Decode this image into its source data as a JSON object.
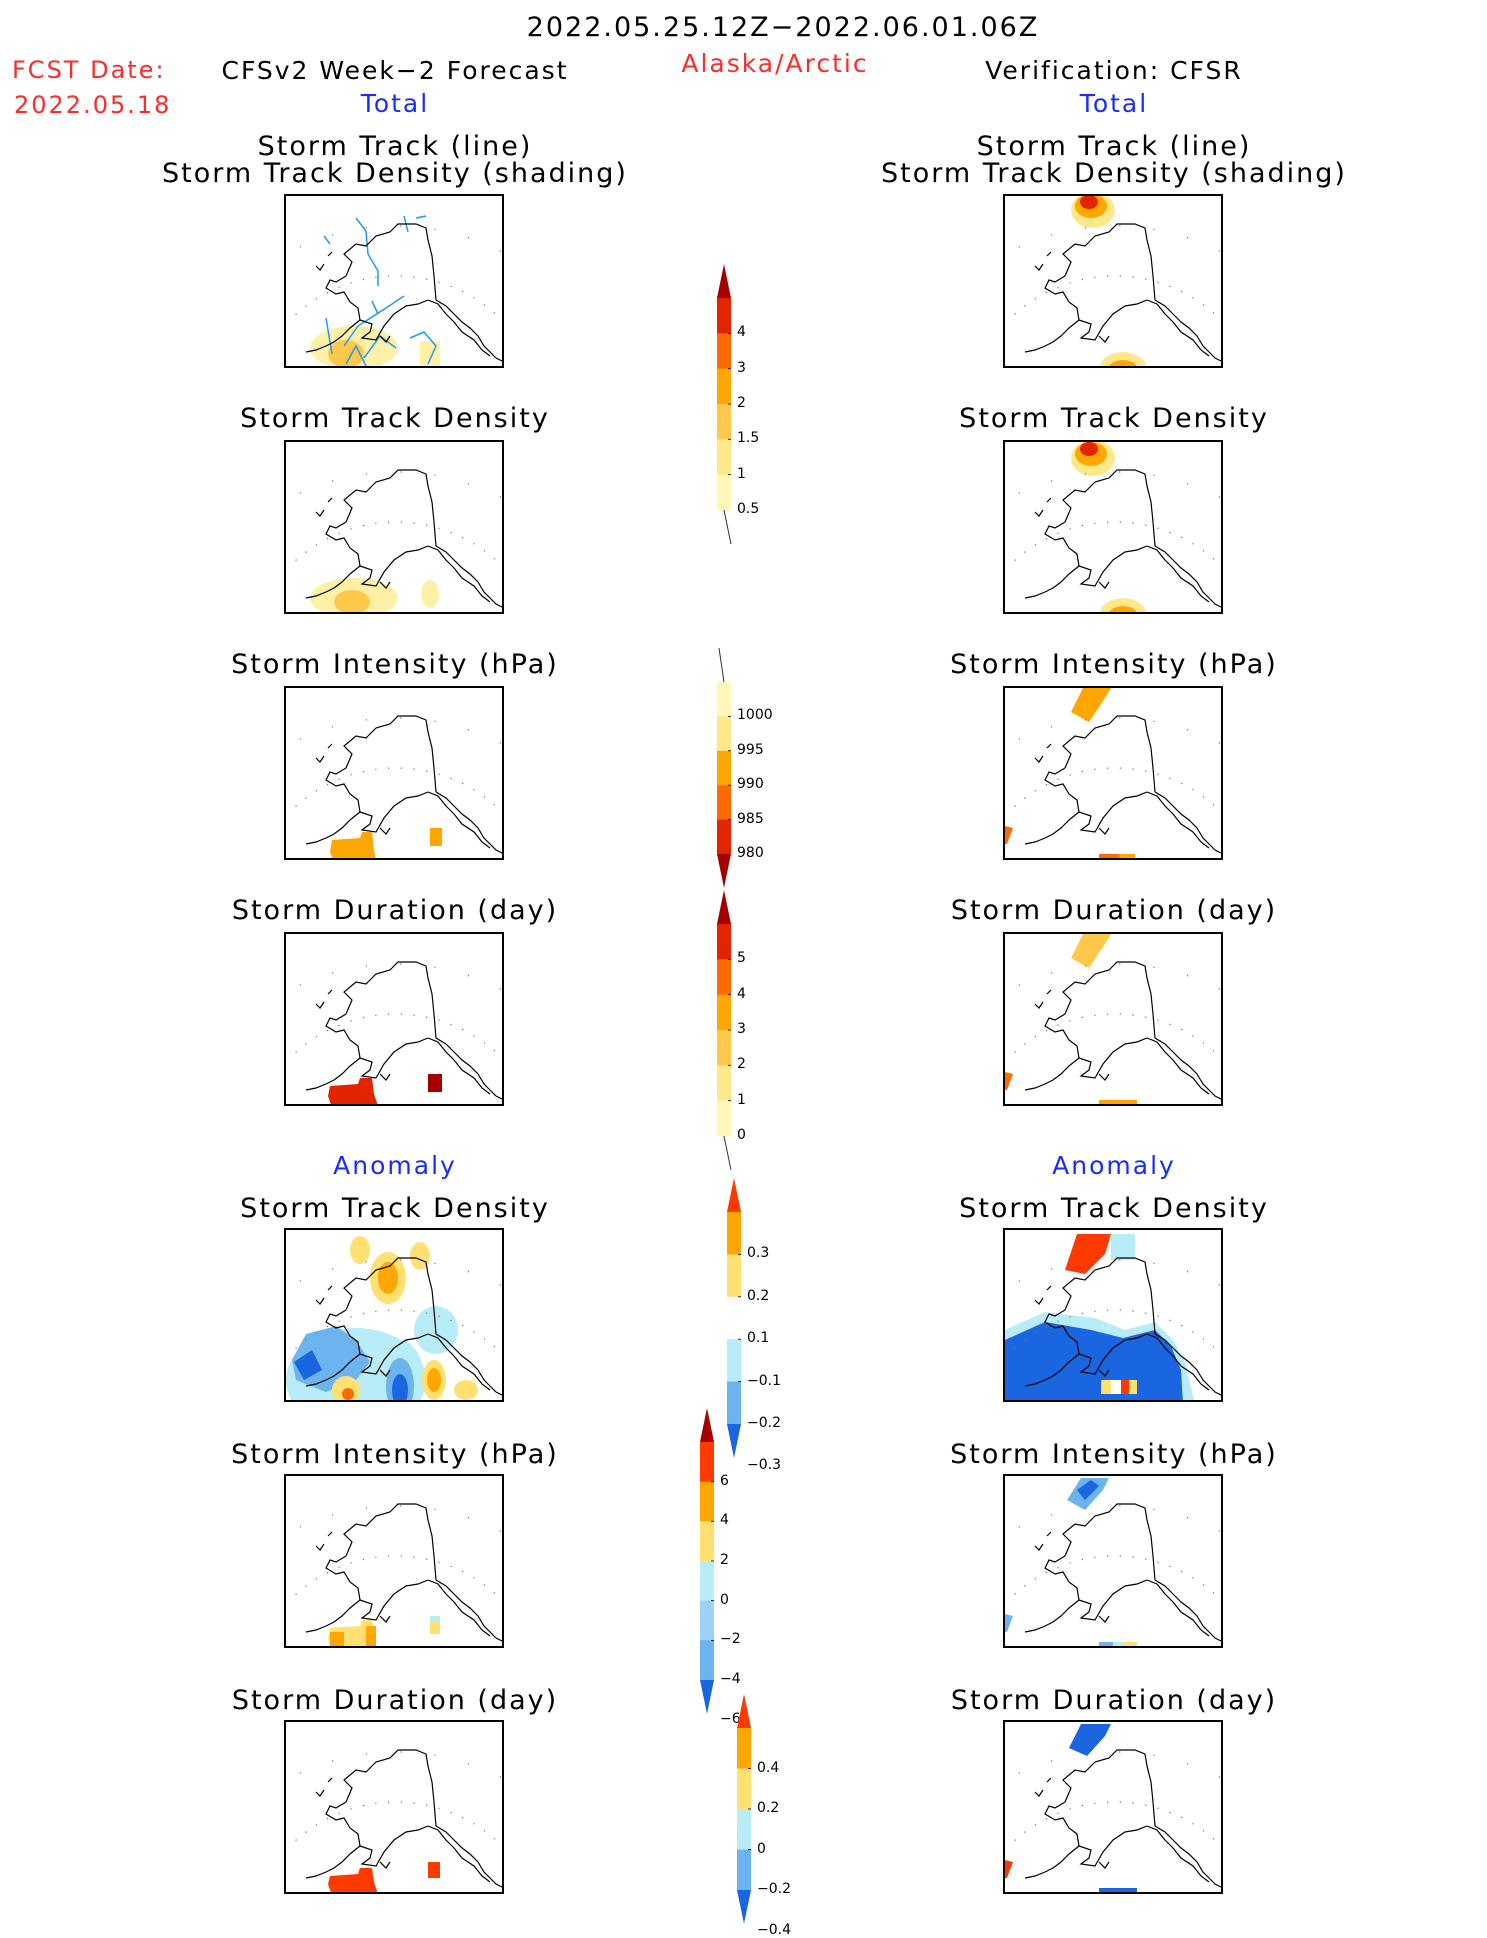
{
  "header": {
    "date_range": "2022.05.25.12Z−2022.06.01.06Z",
    "fcst_label": "FCST Date:",
    "fcst_date": "2022.05.18",
    "left_title": "CFSv2 Week−2 Forecast",
    "region": "Alaska/Arctic",
    "right_title": "Verification: CFSR",
    "left_total": "Total",
    "right_total": "Total",
    "left_anomaly": "Anomaly",
    "right_anomaly": "Anomaly"
  },
  "panel_titles": {
    "track_line": "Storm Track (line)",
    "track_shading": "Storm Track Density (shading)",
    "density": "Storm Track Density",
    "intensity": "Storm Intensity (hPa)",
    "duration": "Storm Duration (day)"
  },
  "colorbars": {
    "density_total": {
      "ticks": [
        "4",
        "3",
        "2",
        "1.5",
        "1",
        "0.5"
      ],
      "colors": [
        "#a50000",
        "#e32400",
        "#ff6a00",
        "#ffa600",
        "#ffc84a",
        "#ffe88a",
        "#fff7b8"
      ]
    },
    "intensity_total": {
      "ticks": [
        "1000",
        "995",
        "990",
        "985",
        "980"
      ],
      "colors": [
        "#fff7b8",
        "#ffe88a",
        "#ffa600",
        "#ff6a00",
        "#e32400",
        "#a50000"
      ]
    },
    "duration_total": {
      "ticks": [
        "5",
        "4",
        "3",
        "2",
        "1",
        "0"
      ],
      "colors": [
        "#a50000",
        "#e32400",
        "#ff6a00",
        "#ffa600",
        "#ffc84a",
        "#ffe88a",
        "#fff7b8"
      ]
    },
    "density_anom": {
      "ticks": [
        "0.3",
        "0.2",
        "0.1",
        "−0.1",
        "−0.2",
        "−0.3"
      ],
      "colors": [
        "#ff3a00",
        "#ffa600",
        "#ffe070",
        "#ffffff",
        "#b8ecf8",
        "#6cb4f0",
        "#1a66e0"
      ]
    },
    "intensity_anom": {
      "ticks": [
        "6",
        "4",
        "2",
        "0",
        "−2",
        "−4",
        "−6"
      ],
      "colors": [
        "#a50000",
        "#ff3a00",
        "#ffa600",
        "#ffe070",
        "#b8ecf8",
        "#9cd2f6",
        "#6cb4f0",
        "#1a66e0"
      ]
    },
    "duration_anom": {
      "ticks": [
        "0.4",
        "0.2",
        "0",
        "−0.2",
        "−0.4"
      ],
      "colors": [
        "#ff3a00",
        "#ffa600",
        "#ffe070",
        "#b8ecf8",
        "#6cb4f0",
        "#1a66e0"
      ]
    }
  },
  "colors": {
    "red_text": "#ff2a2a",
    "blue_text": "#1a2bff",
    "track_line": "#1e9bf0"
  }
}
